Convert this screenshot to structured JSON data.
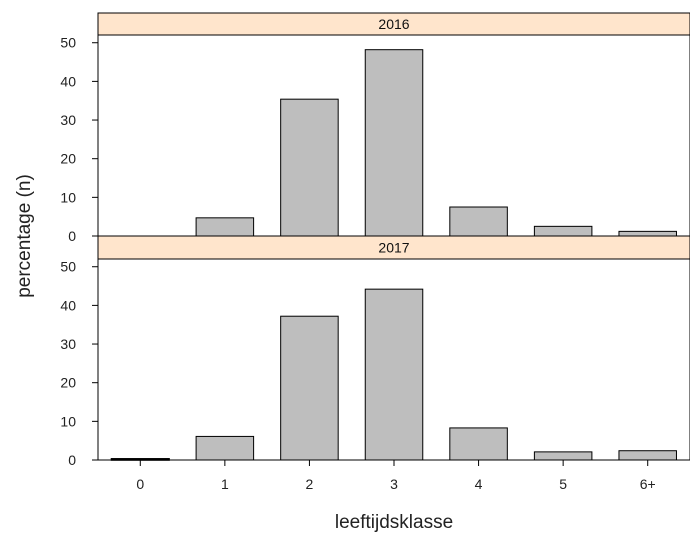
{
  "chart_data": {
    "type": "bar",
    "xlabel": "leeftijdsklasse",
    "ylabel": "percentage (n)",
    "categories": [
      "0",
      "1",
      "2",
      "3",
      "4",
      "5",
      "6+"
    ],
    "ylim": [
      0,
      52
    ],
    "yticks": [
      0,
      10,
      20,
      30,
      40,
      50
    ],
    "grid": false,
    "panels": [
      {
        "strip_label": "2016",
        "values": [
          0,
          4.7,
          35.4,
          48.2,
          7.5,
          2.5,
          1.2
        ]
      },
      {
        "strip_label": "2017",
        "values": [
          0.3,
          6.1,
          37.2,
          44.2,
          8.3,
          2.1,
          2.4
        ]
      }
    ],
    "colors": {
      "bar_fill": "#bebebe",
      "bar_stroke": "#000000",
      "strip_fill": "#ffe5cc",
      "zero_line": "#e6e6e6",
      "frame": "#000000"
    }
  }
}
